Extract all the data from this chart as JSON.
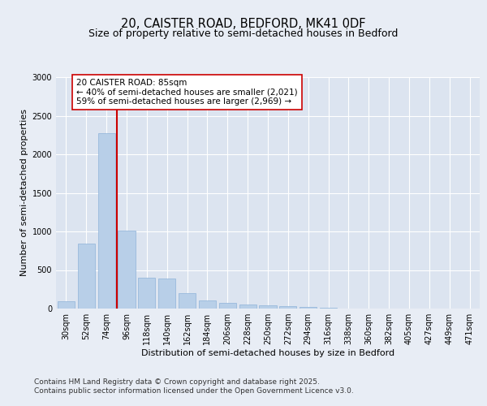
{
  "title_line1": "20, CAISTER ROAD, BEDFORD, MK41 0DF",
  "title_line2": "Size of property relative to semi-detached houses in Bedford",
  "xlabel": "Distribution of semi-detached houses by size in Bedford",
  "ylabel": "Number of semi-detached properties",
  "categories": [
    "30sqm",
    "52sqm",
    "74sqm",
    "96sqm",
    "118sqm",
    "140sqm",
    "162sqm",
    "184sqm",
    "206sqm",
    "228sqm",
    "250sqm",
    "272sqm",
    "294sqm",
    "316sqm",
    "338sqm",
    "360sqm",
    "382sqm",
    "405sqm",
    "427sqm",
    "449sqm",
    "471sqm"
  ],
  "values": [
    100,
    840,
    2270,
    1010,
    400,
    390,
    195,
    110,
    75,
    50,
    40,
    30,
    18,
    10,
    5,
    3,
    2,
    2,
    1,
    1,
    1
  ],
  "bar_color": "#b8cfe8",
  "bar_edge_color": "#8fb3d9",
  "vline_x_index": 2,
  "vline_color": "#cc0000",
  "annotation_text": "20 CAISTER ROAD: 85sqm\n← 40% of semi-detached houses are smaller (2,021)\n59% of semi-detached houses are larger (2,969) →",
  "annotation_box_facecolor": "#ffffff",
  "annotation_box_edgecolor": "#cc0000",
  "ylim": [
    0,
    3000
  ],
  "yticks": [
    0,
    500,
    1000,
    1500,
    2000,
    2500,
    3000
  ],
  "background_color": "#e8edf5",
  "plot_background_color": "#dce4f0",
  "grid_color": "#ffffff",
  "footer_line1": "Contains HM Land Registry data © Crown copyright and database right 2025.",
  "footer_line2": "Contains public sector information licensed under the Open Government Licence v3.0.",
  "title_fontsize": 10.5,
  "subtitle_fontsize": 9,
  "axis_label_fontsize": 8,
  "tick_fontsize": 7,
  "annotation_fontsize": 7.5,
  "footer_fontsize": 6.5
}
